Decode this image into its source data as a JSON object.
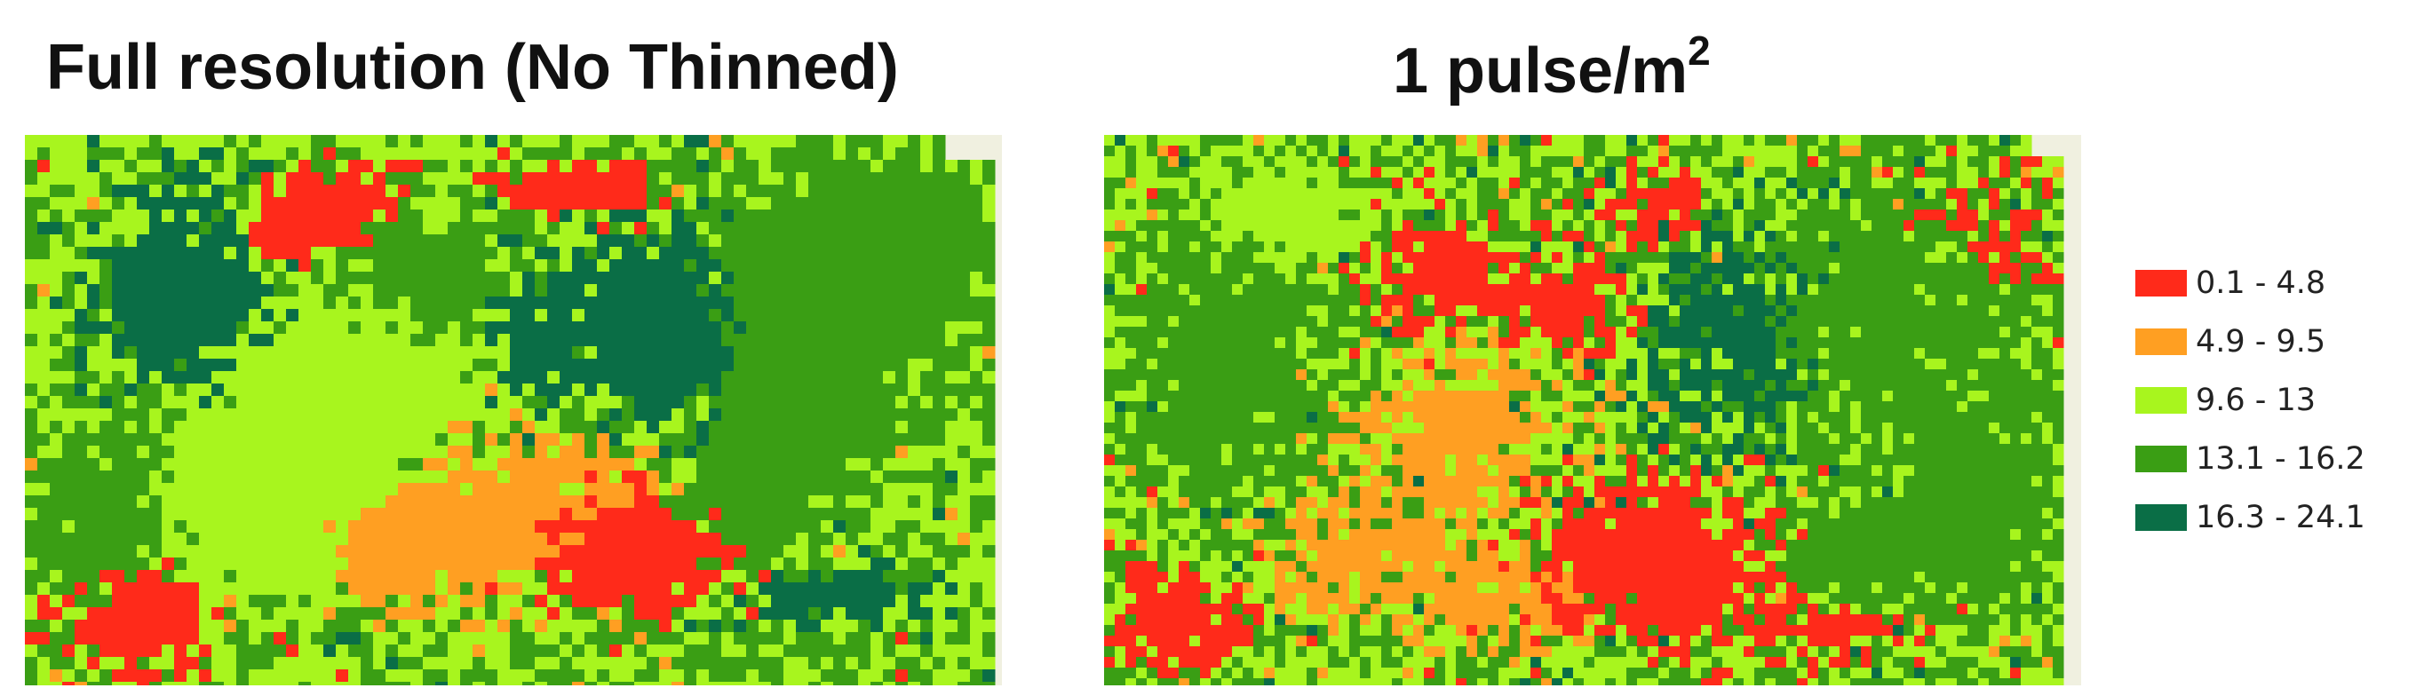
{
  "panels": [
    {
      "title": "Full resolution (No Thinned)"
    },
    {
      "title_main": "1 pulse/m",
      "title_sup": "2"
    }
  ],
  "legend": [
    {
      "label": "0.1 - 4.8",
      "color": "#ff2a1a"
    },
    {
      "label": "4.9 - 9.5",
      "color": "#ff9f22"
    },
    {
      "label": "9.6 - 13",
      "color": "#a8f51e"
    },
    {
      "label": "13.1 - 16.2",
      "color": "#3a9e14"
    },
    {
      "label": "16.3 - 24.1",
      "color": "#0a6e46"
    }
  ],
  "colors": {
    "no_data_background": "#f0f0e0"
  }
}
